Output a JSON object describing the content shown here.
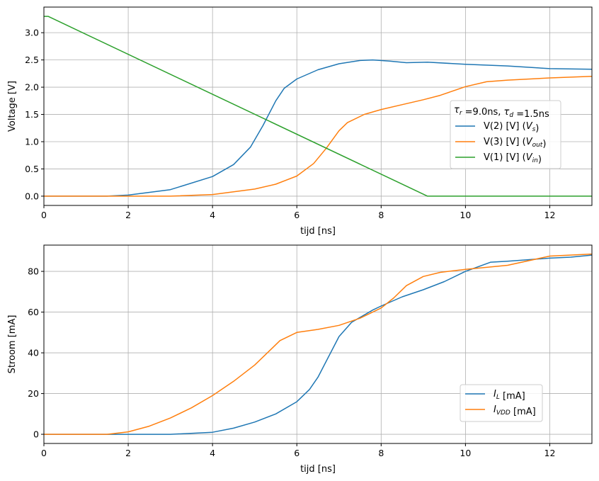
{
  "chart_data": [
    {
      "type": "line",
      "xlabel": "tijd [ns]",
      "ylabel": "Voltage [V]",
      "xlim": [
        0,
        13
      ],
      "ylim": [
        -0.17,
        3.47
      ],
      "xticks": [
        0,
        2,
        4,
        6,
        8,
        10,
        12
      ],
      "yticks": [
        0.0,
        0.5,
        1.0,
        1.5,
        2.0,
        2.5,
        3.0
      ],
      "grid": true,
      "legend": {
        "placement": "center-right",
        "title": "τ_r =9.0ns, τ_d =1.5ns"
      },
      "series": [
        {
          "name": "V(2) [V]  (V_s)",
          "color": "#1f77b4",
          "x": [
            0,
            1.5,
            2,
            3,
            4,
            4.5,
            4.9,
            5.2,
            5.5,
            5.7,
            6,
            6.5,
            7,
            7.5,
            7.8,
            8.2,
            8.6,
            9.1,
            10,
            11,
            12,
            13
          ],
          "y": [
            0,
            0,
            0.02,
            0.12,
            0.36,
            0.58,
            0.9,
            1.3,
            1.75,
            1.98,
            2.15,
            2.32,
            2.43,
            2.49,
            2.5,
            2.48,
            2.45,
            2.46,
            2.42,
            2.39,
            2.34,
            2.33
          ]
        },
        {
          "name": "V(3) [V]  (V_out)",
          "color": "#ff7f0e",
          "x": [
            0,
            3,
            4,
            5,
            5.5,
            6,
            6.4,
            6.7,
            7,
            7.2,
            7.6,
            8,
            8.5,
            9,
            9.4,
            10,
            10.5,
            11,
            12,
            13
          ],
          "y": [
            0,
            0,
            0.03,
            0.13,
            0.22,
            0.37,
            0.6,
            0.88,
            1.2,
            1.35,
            1.5,
            1.59,
            1.68,
            1.77,
            1.85,
            2.01,
            2.1,
            2.13,
            2.17,
            2.2
          ]
        },
        {
          "name": "V(1) [V]  (V_in)",
          "color": "#2ca02c",
          "x": [
            0,
            0.1,
            9.1,
            13
          ],
          "y": [
            3.3,
            3.3,
            0,
            0
          ]
        }
      ]
    },
    {
      "type": "line",
      "xlabel": "tijd [ns]",
      "ylabel": "Stroom [mA]",
      "xlim": [
        0,
        13
      ],
      "ylim": [
        -4.5,
        92.9
      ],
      "xticks": [
        0,
        2,
        4,
        6,
        8,
        10,
        12
      ],
      "yticks": [
        0,
        20,
        40,
        60,
        80
      ],
      "grid": true,
      "legend": {
        "placement": "lower-right"
      },
      "series": [
        {
          "name": "I_L  [mA]",
          "color": "#1f77b4",
          "x": [
            0,
            3,
            4,
            4.5,
            5,
            5.5,
            6,
            6.3,
            6.5,
            7,
            7.3,
            7.8,
            8,
            8.5,
            9,
            9.5,
            10,
            10.6,
            11,
            12,
            12.5,
            13
          ],
          "y": [
            0,
            0,
            1,
            3,
            6,
            10,
            16,
            22,
            28,
            48,
            55,
            61,
            63,
            67.5,
            71,
            75,
            80,
            84.5,
            85,
            86.5,
            87,
            88
          ]
        },
        {
          "name": "I_VDD [mA]",
          "color": "#ff7f0e",
          "x": [
            0,
            1.5,
            2,
            2.5,
            3,
            3.5,
            4,
            4.5,
            5,
            5.3,
            5.6,
            6,
            6.5,
            7,
            7.5,
            8,
            8.3,
            8.6,
            9,
            9.4,
            10,
            11,
            12,
            13
          ],
          "y": [
            0,
            0,
            1.2,
            4,
            8,
            13,
            19,
            26,
            34,
            40,
            46,
            50,
            51.5,
            53.5,
            57,
            62,
            67,
            73,
            77.5,
            79.5,
            81,
            83,
            87.5,
            88.5
          ]
        }
      ]
    }
  ]
}
